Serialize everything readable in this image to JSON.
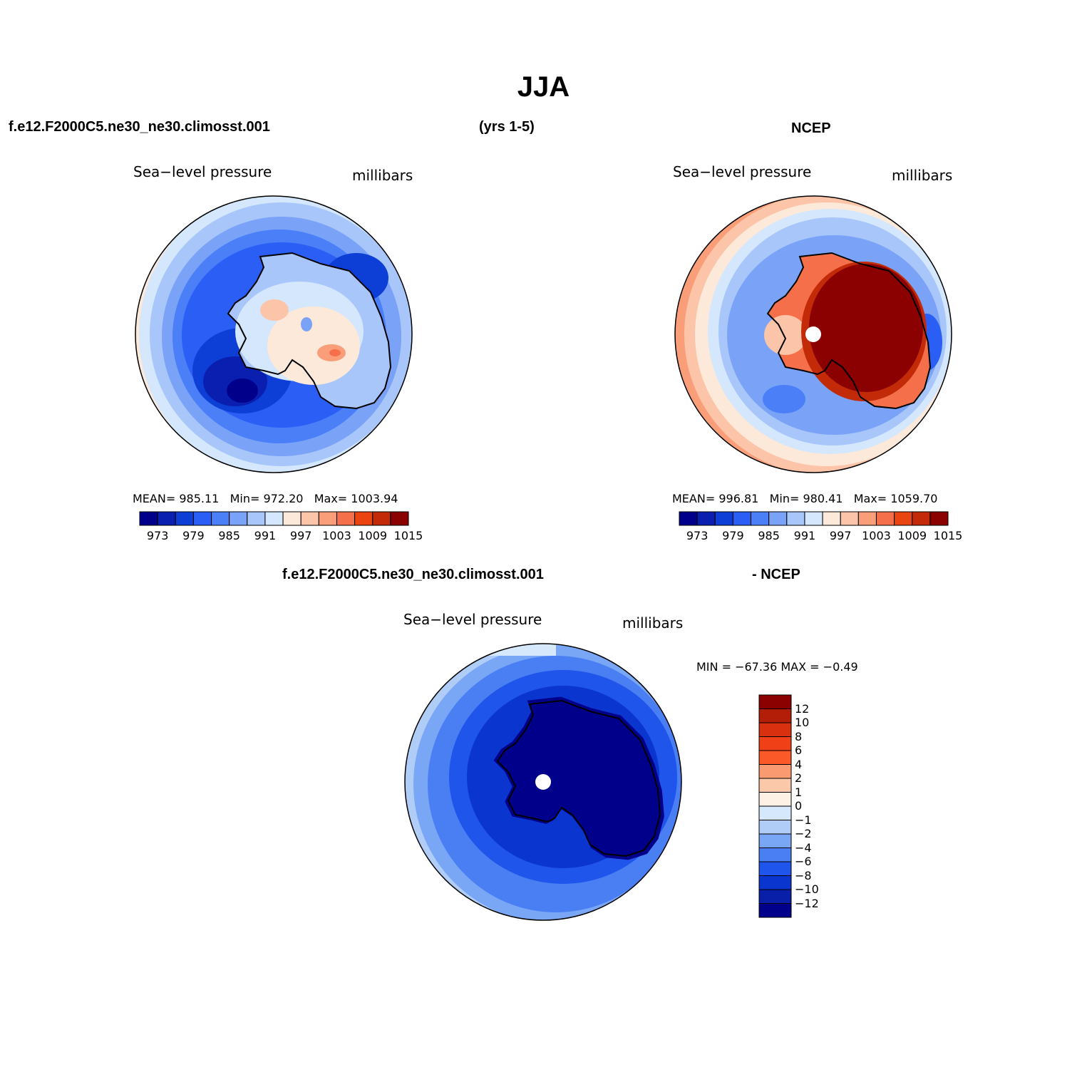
{
  "title": "JJA",
  "panels": [
    {
      "header_left": "f.e12.F2000C5.ne30_ne30.climosst.001",
      "header_center": "(yrs 1-5)",
      "variable": "Sea−level pressure",
      "units": "millibars",
      "stats": {
        "mean_label": "MEAN=",
        "mean": "985.11",
        "min_label": "Min=",
        "min": "972.20",
        "max_label": "Max=",
        "max": "1003.94"
      }
    },
    {
      "header_right": "NCEP",
      "variable": "Sea−level pressure",
      "units": "millibars",
      "stats": {
        "mean_label": "MEAN=",
        "mean": "996.81",
        "min_label": "Min=",
        "min": "980.41",
        "max_label": "Max=",
        "max": "1059.70"
      }
    },
    {
      "header_left": "f.e12.F2000C5.ne30_ne30.climosst.001",
      "header_right": "- NCEP",
      "variable": "Sea−level pressure",
      "units": "millibars",
      "stats": {
        "text": "MIN = −67.36 MAX =  −0.49"
      }
    }
  ],
  "colorbar_abs": {
    "labels": [
      "973",
      "979",
      "985",
      "991",
      "997",
      "1003",
      "1009",
      "1015"
    ],
    "colors": [
      "#00008b",
      "#0a1fb0",
      "#0d3fd6",
      "#2a5ef5",
      "#4a7ff8",
      "#7aa3f8",
      "#a8c6fa",
      "#d4e7fc",
      "#fde9d9",
      "#fcc4a8",
      "#f99e78",
      "#f5704a",
      "#ea4410",
      "#c22a08",
      "#8b0000"
    ]
  },
  "colorbar_diff": {
    "labels": [
      "12",
      "10",
      "8",
      "6",
      "4",
      "2",
      "1",
      "0",
      "−1",
      "−2",
      "−4",
      "−6",
      "−8",
      "−10",
      "−12"
    ],
    "colors": [
      "#8b0000",
      "#b21e08",
      "#d93010",
      "#f04018",
      "#fb5a28",
      "#fa9a70",
      "#fcc8aa",
      "#fdf0e4",
      "#d6e9fc",
      "#b0cdf8",
      "#7aa6f6",
      "#4a7ff4",
      "#1f55ea",
      "#0b35cf",
      "#0a1fa8",
      "#00008b"
    ]
  }
}
